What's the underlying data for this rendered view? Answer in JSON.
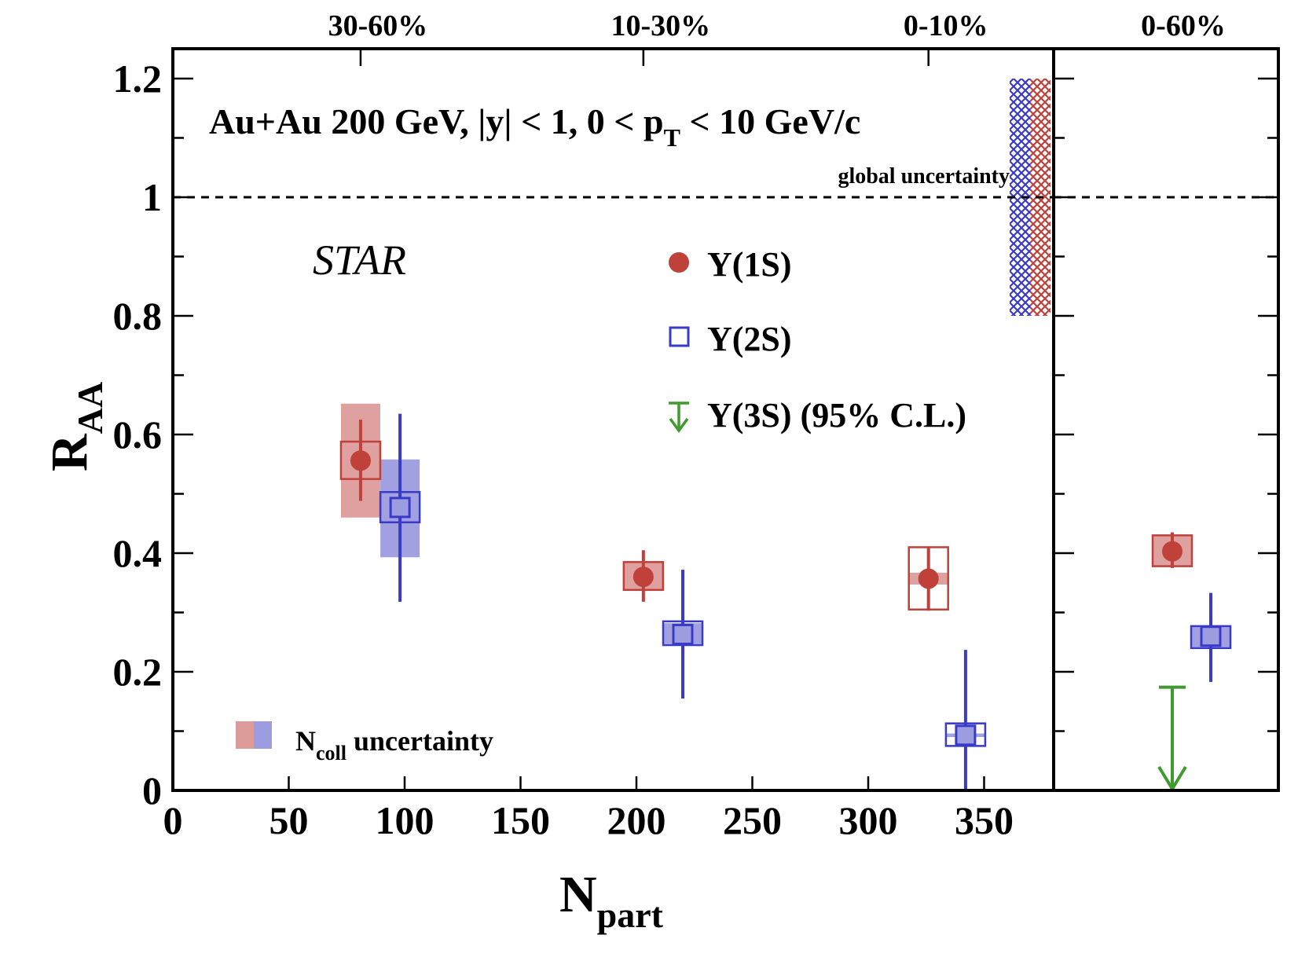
{
  "chart_data": {
    "type": "scatter",
    "title": "Au+Au 200 GeV, |y| < 1, 0 < p_T < 10 GeV/c",
    "title_parts": {
      "main": "Au+Au 200 GeV, |y| < 1, 0 < p",
      "sub": "T",
      "tail": " < 10 GeV/c"
    },
    "experiment_label": "STAR",
    "xlabel": {
      "main": "N",
      "sub": "part"
    },
    "ylabel": {
      "main": "R",
      "sub": "AA"
    },
    "xlim": [
      0,
      380
    ],
    "ylim": [
      0,
      1.25
    ],
    "xticks": [
      0,
      50,
      100,
      150,
      200,
      250,
      300,
      350
    ],
    "xtick_labels": [
      "0",
      "50",
      "100",
      "150",
      "200",
      "250",
      "300",
      "350"
    ],
    "yticks": [
      0,
      0.2,
      0.4,
      0.6,
      0.8,
      1,
      1.2
    ],
    "ytick_labels": [
      "0",
      "0.2",
      "0.4",
      "0.6",
      "0.8",
      "1",
      "1.2"
    ],
    "reference_line": 1.0,
    "centrality_labels": [
      {
        "label": "30-60%",
        "npart": 81
      },
      {
        "label": "10-30%",
        "npart": 203
      },
      {
        "label": "0-10%",
        "npart": 326
      },
      {
        "label": "0-60%",
        "panel": "integrated"
      }
    ],
    "global_uncertainty_label": "global uncertainty",
    "global_uncertainty": [
      {
        "series": "Y(2S)",
        "color": "#3a3ac8",
        "low": 0.8,
        "high": 1.2
      },
      {
        "series": "Y(1S)",
        "color": "#c0403a",
        "low": 0.8,
        "high": 1.2
      }
    ],
    "ncoll_label": {
      "main": "N",
      "sub": "coll",
      "tail": " uncertainty"
    },
    "legend": [
      {
        "label": "Υ(1S)",
        "marker": "filled-circle",
        "color": "#c0403a"
      },
      {
        "label": "Υ(2S)",
        "marker": "open-square",
        "color": "#3a3ac8"
      },
      {
        "label": "Υ(3S) (95% C.L.)",
        "marker": "down-arrow",
        "color": "#3f9a2f"
      }
    ],
    "legend_placement": "center-right",
    "series": [
      {
        "name": "Y(1S)",
        "color": "#c0403a",
        "fill": "#dc9c9a",
        "points": [
          {
            "centrality": "30-60%",
            "npart": 81,
            "raa": 0.556,
            "stat_low": 0.488,
            "stat_high": 0.625,
            "sys_low": 0.525,
            "sys_high": 0.588,
            "ncoll_low": 0.46,
            "ncoll_high": 0.652
          },
          {
            "centrality": "10-30%",
            "npart": 203,
            "raa": 0.36,
            "stat_low": 0.318,
            "stat_high": 0.405,
            "sys_low": 0.338,
            "sys_high": 0.385,
            "ncoll_low": 0.338,
            "ncoll_high": 0.385
          },
          {
            "centrality": "0-10%",
            "npart": 326,
            "raa": 0.357,
            "stat_low": 0.303,
            "stat_high": 0.41,
            "sys_low": 0.305,
            "sys_high": 0.41,
            "ncoll_low": 0.347,
            "ncoll_high": 0.367
          }
        ],
        "integrated": {
          "centrality": "0-60%",
          "raa": 0.403,
          "stat_low": 0.375,
          "stat_high": 0.435,
          "sys_low": 0.378,
          "sys_high": 0.43,
          "ncoll_low": 0.378,
          "ncoll_high": 0.43
        }
      },
      {
        "name": "Y(2S)",
        "color": "#3a3ac8",
        "fill": "#9c9ce0",
        "points": [
          {
            "centrality": "30-60%",
            "npart": 98,
            "raa": 0.477,
            "stat_low": 0.318,
            "stat_high": 0.635,
            "sys_low": 0.452,
            "sys_high": 0.503,
            "ncoll_low": 0.393,
            "ncoll_high": 0.558
          },
          {
            "centrality": "10-30%",
            "npart": 220,
            "raa": 0.263,
            "stat_low": 0.155,
            "stat_high": 0.372,
            "sys_low": 0.245,
            "sys_high": 0.285,
            "ncoll_low": 0.247,
            "ncoll_high": 0.282
          },
          {
            "centrality": "0-10%",
            "npart": 342,
            "raa": 0.093,
            "stat_low": 0.0,
            "stat_high": 0.237,
            "sys_low": 0.075,
            "sys_high": 0.113,
            "ncoll_low": 0.09,
            "ncoll_high": 0.096
          }
        ],
        "integrated": {
          "centrality": "0-60%",
          "raa": 0.26,
          "stat_low": 0.183,
          "stat_high": 0.333,
          "sys_low": 0.24,
          "sys_high": 0.277,
          "ncoll_low": 0.242,
          "ncoll_high": 0.276
        }
      },
      {
        "name": "Y(3S)",
        "color": "#3f9a2f",
        "type": "upper-limit",
        "points": [],
        "integrated": {
          "centrality": "0-60%",
          "upper_limit": 0.174,
          "confidence": "95% C.L."
        }
      }
    ]
  }
}
